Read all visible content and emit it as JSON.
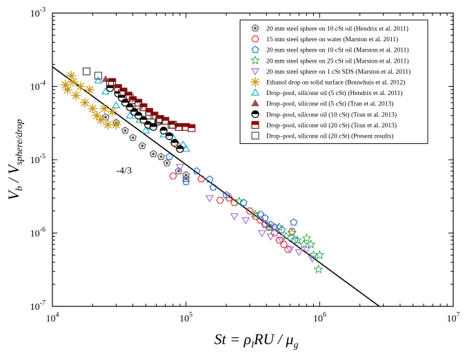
{
  "chart_data": {
    "type": "scatter",
    "title": "",
    "xscale": "log",
    "yscale": "log",
    "xlim": [
      10000,
      10000000
    ],
    "ylim": [
      1e-07,
      0.001
    ],
    "grid": false,
    "legend_position": "top-right",
    "x_ticks": [
      {
        "value": 10000,
        "base": "10",
        "exp": "4"
      },
      {
        "value": 100000,
        "base": "10",
        "exp": "5"
      },
      {
        "value": 1000000,
        "base": "10",
        "exp": "6"
      },
      {
        "value": 10000000,
        "base": "10",
        "exp": "7"
      }
    ],
    "y_ticks": [
      {
        "value": 1e-07,
        "base": "10",
        "exp": "-7"
      },
      {
        "value": 1e-06,
        "base": "10",
        "exp": "-6"
      },
      {
        "value": 1e-05,
        "base": "10",
        "exp": "-5"
      },
      {
        "value": 0.0001,
        "base": "10",
        "exp": "-4"
      },
      {
        "value": 0.001,
        "base": "10",
        "exp": "-3"
      }
    ],
    "xlabel": {
      "main": "St = ρ",
      "sub1": "l",
      "mid": "RU / μ",
      "sub2": "g"
    },
    "ylabel": {
      "v": "V",
      "vsub": "b",
      "rest": " / V",
      "sub2": "sphere/drop"
    },
    "fit_line": {
      "label": "-4/3",
      "slope": -1.3333,
      "x": [
        10000,
        2800000
      ],
      "y": [
        0.000185,
        1e-07
      ]
    },
    "series": [
      {
        "name": "20 mm steel sphere on 10 cSt oil (Hendrix et al. 2011)",
        "marker": "pentagon-half",
        "color": "#555555",
        "x": [
          25000,
          30000,
          35000,
          40000,
          47000,
          57000,
          65000,
          72000,
          88000,
          100000,
          100000
        ],
        "y": [
          3.8e-05,
          3.2e-05,
          2.5e-05,
          2e-05,
          1.55e-05,
          1.2e-05,
          1.1e-05,
          9e-06,
          7e-06,
          6.2e-06,
          5.5e-06
        ]
      },
      {
        "name": "15 mm steel sphere on water (Marston et al. 2011)",
        "marker": "hexagon",
        "color": "#e03030",
        "x": [
          80000,
          85000,
          130000,
          180000,
          210000,
          230000,
          300000,
          330000,
          360000,
          390000,
          420000,
          460000,
          500000,
          540000,
          580000,
          620000
        ],
        "y": [
          6e-06,
          1.6e-05,
          5.5e-06,
          2.8e-06,
          3e-06,
          2.6e-06,
          2e-06,
          1.7e-06,
          1.5e-06,
          1.3e-06,
          1.2e-06,
          1e-06,
          8e-07,
          7e-07,
          6e-07,
          1.05e-06
        ]
      },
      {
        "name": "20 mm steel sphere on 10 cSt oil (Marston et al. 2011)",
        "marker": "pentagon",
        "color": "#1e6fd8",
        "x": [
          75000,
          100000,
          120000,
          150000,
          160000,
          200000,
          270000,
          360000,
          390000,
          430000,
          460000,
          520000,
          640000,
          650000
        ],
        "y": [
          1.1e-05,
          5e-06,
          7e-06,
          5.4e-06,
          4.2e-06,
          3.3e-06,
          2.6e-06,
          1.8e-06,
          1.6e-06,
          1.3e-06,
          1.2e-06,
          1.1e-06,
          1.4e-06,
          8e-07
        ]
      },
      {
        "name": "20 mm steel sphere on 25 cSt oil (Marston et al. 2011)",
        "marker": "star",
        "color": "#2ea84a",
        "x": [
          250000,
          330000,
          420000,
          500000,
          560000,
          620000,
          680000,
          760000,
          800000,
          860000,
          900000,
          980000,
          1000000
        ],
        "y": [
          2.7e-06,
          1.8e-06,
          1.2e-06,
          1.2e-06,
          9e-07,
          1e-06,
          8e-07,
          7e-07,
          8.5e-07,
          7e-07,
          5e-07,
          3.2e-07,
          5e-07
        ]
      },
      {
        "name": "20 mm steel sphere on 1 cSt SDS (Marston et al. 2011)",
        "marker": "triangle-down",
        "color": "#a66cd8",
        "x": [
          90000,
          150000,
          230000,
          280000,
          370000,
          390000,
          430000,
          460000,
          520000,
          600000,
          700000,
          800000,
          880000
        ],
        "y": [
          8e-06,
          3e-06,
          1.7e-06,
          1.5e-06,
          1e-06,
          1.3e-06,
          9e-07,
          1.2e-06,
          8e-07,
          6e-07,
          5.5e-07,
          6e-07,
          4.5e-07
        ]
      },
      {
        "name": "Ethanol drop on solid surface (Bouwhuis et al. 2012)",
        "marker": "asterisk",
        "color": "#c8961a",
        "x": [
          12500,
          13000,
          13800,
          14300,
          15000,
          16200,
          17500,
          19000,
          20000,
          21500,
          23000,
          24500,
          26000,
          28000,
          30000
        ],
        "y": [
          0.000105,
          9e-05,
          0.00014,
          0.000115,
          7.5e-05,
          0.0001,
          6e-05,
          9e-05,
          5e-05,
          4e-05,
          3.5e-05,
          5e-05,
          3e-05,
          4.5e-05,
          3e-05
        ]
      },
      {
        "name": "Drop–pool, silicone oil (5 cSt) (Hendrix et al. 2011)",
        "marker": "triangle-up",
        "color": "#1aafc8",
        "x": [
          22000,
          25000,
          30000,
          38000,
          45000,
          50000,
          55000,
          68000,
          80000,
          95000,
          100000
        ],
        "y": [
          0.00012,
          8.5e-05,
          5.5e-05,
          4e-05,
          3.5e-05,
          2.5e-05,
          2.8e-05,
          2.2e-05,
          2e-05,
          1.6e-05,
          1.4e-05
        ]
      },
      {
        "name": "Drop–pool, silicone oil (5 cSt) (Tran et al. 2013)",
        "marker": "triangle-up-filled",
        "color": "#9a5050",
        "x": [
          25000
        ],
        "y": [
          0.000125
        ]
      },
      {
        "name": "Drop–pool, silicone oil (10 cSt) (Tran et al. 2013)",
        "marker": "circle-half",
        "color": "#000000",
        "x": [
          27000,
          31000,
          33000,
          35000,
          38000,
          41000,
          44000,
          48000,
          52000,
          57000,
          62000,
          68000,
          75000,
          82000,
          90000
        ],
        "y": [
          9.5e-05,
          8e-05,
          7e-05,
          6e-05,
          5.2e-05,
          4.5e-05,
          4e-05,
          3.5e-05,
          3e-05,
          2.8e-05,
          3.3e-05,
          2.5e-05,
          2.1e-05,
          1.7e-05,
          1.4e-05
        ]
      },
      {
        "name": "Drop–pool, silicone oil (20 cSt) (Tran et al. 2013)",
        "marker": "square-half",
        "color": "#8b0a0a",
        "x": [
          28000,
          31000,
          34000,
          37000,
          40000,
          44000,
          48000,
          53000,
          58000,
          64000,
          70000,
          78000,
          88000,
          100000,
          110000
        ],
        "y": [
          0.000115,
          9.5e-05,
          8.5e-05,
          7.5e-05,
          6.5e-05,
          6e-05,
          5.2e-05,
          4.5e-05,
          4e-05,
          3.6e-05,
          3.4e-05,
          3e-05,
          2.8e-05,
          2.8e-05,
          2.7e-05
        ]
      },
      {
        "name": "Drop–pool, silicone oil (20 cSt) (Present results)",
        "marker": "square-open",
        "color": "#222222",
        "x": [
          18000,
          22000,
          27000,
          33000,
          38000,
          44000,
          53000,
          63000,
          80000
        ],
        "y": [
          0.00016,
          0.00014,
          0.00011,
          8e-05,
          7e-05,
          5.5e-05,
          4e-05,
          3.5e-05,
          3e-05
        ]
      }
    ]
  }
}
